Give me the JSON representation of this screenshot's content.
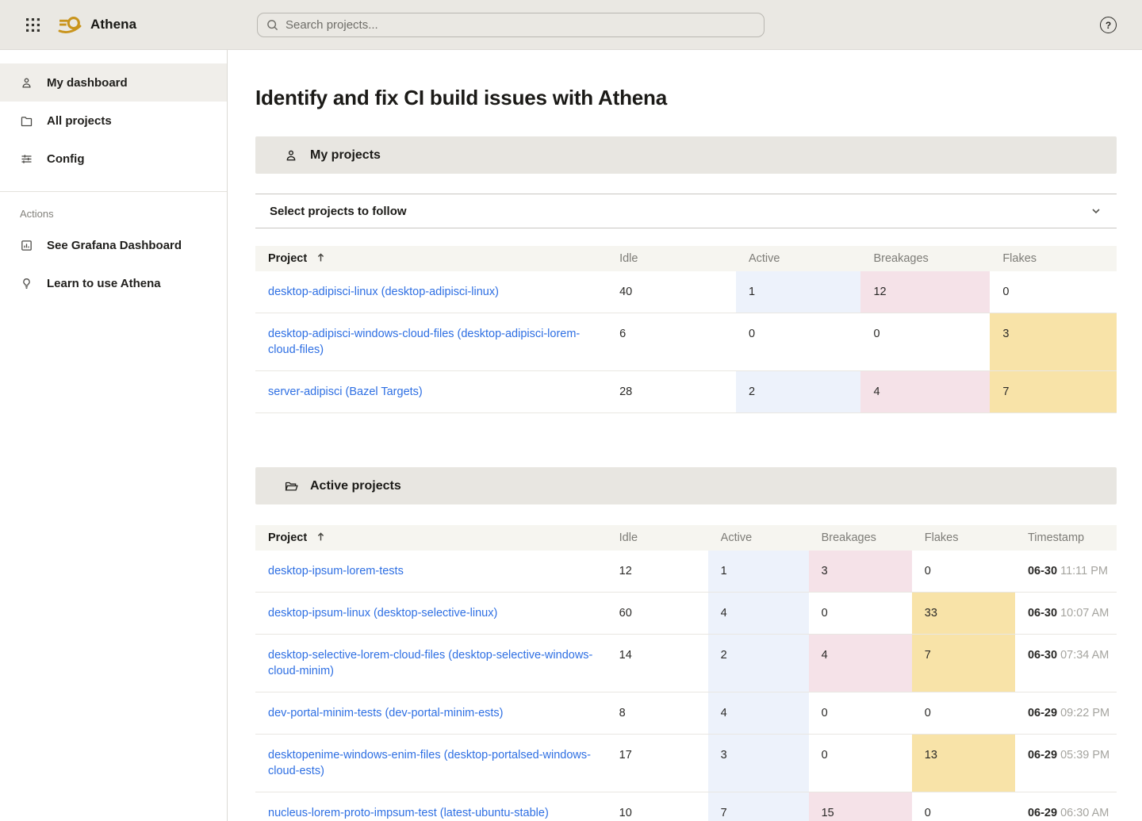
{
  "colors": {
    "topbar_bg": "#eae8e3",
    "section_header_bg": "#e8e6e1",
    "table_header_bg": "#f6f5f0",
    "sidebar_selected_bg": "#f0eeea",
    "highlight_active": "#edf2fb",
    "highlight_breakages": "#f5e2e8",
    "highlight_flakes": "#f8e3a8",
    "link": "#2e6fe3",
    "brand_gold": "#c9941c"
  },
  "topbar": {
    "brand": "Athena",
    "search_placeholder": "Search projects...",
    "help_glyph": "?"
  },
  "sidebar": {
    "items": [
      {
        "label": "My dashboard",
        "icon": "user-icon",
        "selected": true
      },
      {
        "label": "All projects",
        "icon": "folder-icon",
        "selected": false
      },
      {
        "label": "Config",
        "icon": "sliders-icon",
        "selected": false
      }
    ],
    "actions_label": "Actions",
    "actions": [
      {
        "label": "See Grafana Dashboard",
        "icon": "chart-panel-icon"
      },
      {
        "label": "Learn to use Athena",
        "icon": "lightbulb-icon"
      }
    ]
  },
  "main": {
    "page_title": "Identify and fix CI build issues with Athena",
    "sections": {
      "my_projects": {
        "title": "My projects",
        "collapse_label": "Select projects to follow",
        "sort_column": "Project",
        "sort_direction": "asc",
        "columns": [
          "Project",
          "Idle",
          "Active",
          "Breakages",
          "Flakes"
        ],
        "rows": [
          {
            "project": "desktop-adipisci-linux (desktop-adipisci-linux)",
            "idle": 40,
            "active": 1,
            "breakages": 12,
            "flakes": 0
          },
          {
            "project": "desktop-adipisci-windows-cloud-files (desktop-adipisci-lorem-cloud-files)",
            "idle": 6,
            "active": 0,
            "breakages": 0,
            "flakes": 3
          },
          {
            "project": "server-adipisci (Bazel Targets)",
            "idle": 28,
            "active": 2,
            "breakages": 4,
            "flakes": 7
          }
        ]
      },
      "active_projects": {
        "title": "Active projects",
        "sort_column": "Project",
        "sort_direction": "asc",
        "columns": [
          "Project",
          "Idle",
          "Active",
          "Breakages",
          "Flakes",
          "Timestamp"
        ],
        "rows": [
          {
            "project": "desktop-ipsum-lorem-tests",
            "idle": 12,
            "active": 1,
            "breakages": 3,
            "flakes": 0,
            "date": "06-30",
            "time": "11:11 PM"
          },
          {
            "project": "desktop-ipsum-linux (desktop-selective-linux)",
            "idle": 60,
            "active": 4,
            "breakages": 0,
            "flakes": 33,
            "date": "06-30",
            "time": "10:07 AM"
          },
          {
            "project": "desktop-selective-lorem-cloud-files (desktop-selective-windows-cloud-minim)",
            "idle": 14,
            "active": 2,
            "breakages": 4,
            "flakes": 7,
            "date": "06-30",
            "time": "07:34 AM"
          },
          {
            "project": "dev-portal-minim-tests (dev-portal-minim-ests)",
            "idle": 8,
            "active": 4,
            "breakages": 0,
            "flakes": 0,
            "date": "06-29",
            "time": "09:22 PM"
          },
          {
            "project": "desktopenime-windows-enim-files (desktop-portalsed-windows-cloud-ests)",
            "idle": 17,
            "active": 3,
            "breakages": 0,
            "flakes": 13,
            "date": "06-29",
            "time": "05:39 PM"
          },
          {
            "project": "nucleus-lorem-proto-impsum-test (latest-ubuntu-stable)",
            "idle": 10,
            "active": 7,
            "breakages": 15,
            "flakes": 0,
            "date": "06-29",
            "time": "06:30 AM"
          }
        ]
      }
    }
  }
}
